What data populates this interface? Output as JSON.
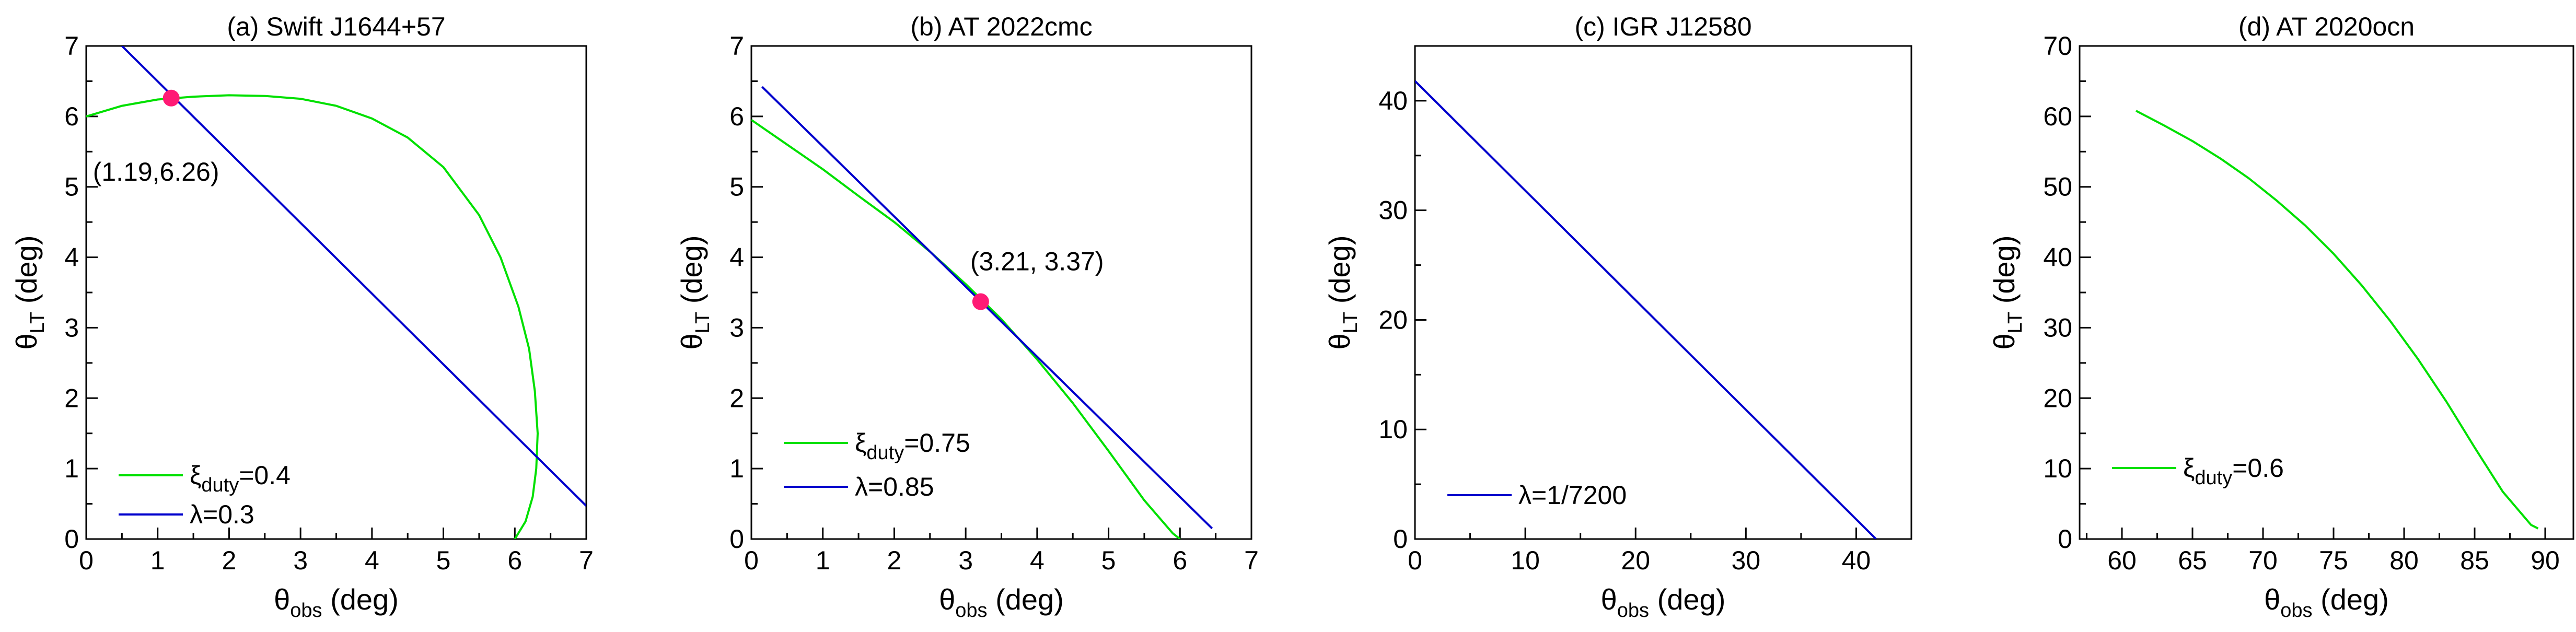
{
  "chart_data": [
    {
      "type": "line",
      "title": "(a) Swift J1644+57",
      "xlabel": {
        "main": "θ",
        "sub": "obs",
        "rest": " (deg)"
      },
      "ylabel": {
        "main": "θ",
        "sub": "LT",
        "rest": " (deg)"
      },
      "xlim": [
        0,
        7
      ],
      "ylim": [
        0,
        7
      ],
      "xticks": [
        0,
        1,
        2,
        3,
        4,
        5,
        6,
        7
      ],
      "yticks": [
        0,
        1,
        2,
        3,
        4,
        5,
        6,
        7
      ],
      "legend_position": "bottom-left",
      "series": [
        {
          "name": "ξ",
          "name_sub": "duty",
          "name_rest": "=0.4",
          "color": "#00e000",
          "x": [
            0,
            0.5,
            1.0,
            1.5,
            2.0,
            2.5,
            3.0,
            3.5,
            4.0,
            4.5,
            5.0,
            5.5,
            5.8,
            6.05,
            6.2,
            6.28,
            6.32,
            6.3,
            6.25,
            6.15,
            6.0
          ],
          "y": [
            6.0,
            6.15,
            6.24,
            6.28,
            6.3,
            6.29,
            6.25,
            6.15,
            5.97,
            5.7,
            5.28,
            4.6,
            4.0,
            3.3,
            2.7,
            2.1,
            1.5,
            1.0,
            0.6,
            0.25,
            0.0
          ]
        },
        {
          "name": "λ",
          "name_sub": "",
          "name_rest": "=0.3",
          "color": "#0000cc",
          "x": [
            0.5,
            7.0
          ],
          "y": [
            7.0,
            0.47
          ]
        }
      ],
      "point": {
        "x": 1.19,
        "y": 6.26,
        "label": "(1.19,6.26)"
      }
    },
    {
      "type": "line",
      "title": "(b) AT 2022cmc",
      "xlabel": {
        "main": "θ",
        "sub": "obs",
        "rest": " (deg)"
      },
      "ylabel": {
        "main": "θ",
        "sub": "LT",
        "rest": " (deg)"
      },
      "xlim": [
        0,
        7
      ],
      "ylim": [
        0,
        7
      ],
      "xticks": [
        0,
        1,
        2,
        3,
        4,
        5,
        6,
        7
      ],
      "yticks": [
        0,
        1,
        2,
        3,
        4,
        5,
        6,
        7
      ],
      "legend_position": "bottom-left",
      "series": [
        {
          "name": "ξ",
          "name_sub": "duty",
          "name_rest": "=0.75",
          "color": "#00e000",
          "x": [
            0.0,
            0.5,
            1.0,
            1.5,
            2.0,
            2.5,
            3.0,
            3.5,
            4.0,
            4.5,
            5.0,
            5.5,
            5.9,
            6.0
          ],
          "y": [
            5.95,
            5.6,
            5.25,
            4.87,
            4.5,
            4.08,
            3.62,
            3.12,
            2.55,
            1.93,
            1.25,
            0.55,
            0.08,
            0.0
          ]
        },
        {
          "name": "λ",
          "name_sub": "",
          "name_rest": "=0.85",
          "color": "#0000cc",
          "x": [
            0.15,
            6.45
          ],
          "y": [
            6.42,
            0.15
          ]
        }
      ],
      "point": {
        "x": 3.21,
        "y": 3.37,
        "label": "(3.21, 3.37)"
      }
    },
    {
      "type": "line",
      "title": "(c) IGR J12580",
      "xlabel": {
        "main": "θ",
        "sub": "obs",
        "rest": " (deg)"
      },
      "ylabel": {
        "main": "θ",
        "sub": "LT",
        "rest": " (deg)"
      },
      "xlim": [
        0,
        45
      ],
      "ylim": [
        0,
        45
      ],
      "xticks": [
        0,
        10,
        20,
        30,
        40
      ],
      "yticks": [
        0,
        10,
        20,
        30,
        40
      ],
      "legend_position": "bottom-left",
      "series": [
        {
          "name": "λ",
          "name_sub": "",
          "name_rest": "=1/7200",
          "color": "#0000cc",
          "x": [
            0,
            41.8
          ],
          "y": [
            41.8,
            0
          ]
        }
      ]
    },
    {
      "type": "line",
      "title": "(d) AT 2020ocn",
      "xlabel": {
        "main": "θ",
        "sub": "obs",
        "rest": " (deg)"
      },
      "ylabel": {
        "main": "θ",
        "sub": "LT",
        "rest": " (deg)"
      },
      "xlim": [
        57,
        92
      ],
      "ylim": [
        0,
        70
      ],
      "xticks": [
        60,
        65,
        70,
        75,
        80,
        85,
        90
      ],
      "yticks": [
        0,
        10,
        20,
        30,
        40,
        50,
        60,
        70
      ],
      "legend_position": "bottom-left",
      "series": [
        {
          "name": "ξ",
          "name_sub": "duty",
          "name_rest": "=0.6",
          "color": "#00e000",
          "x": [
            61,
            63,
            65,
            67,
            69,
            71,
            73,
            75,
            77,
            79,
            81,
            83,
            85,
            87,
            89,
            89.5
          ],
          "y": [
            60.8,
            58.7,
            56.5,
            54.0,
            51.2,
            48.0,
            44.5,
            40.5,
            36.0,
            31.0,
            25.5,
            19.5,
            13.0,
            6.7,
            2.0,
            1.5
          ]
        }
      ]
    }
  ]
}
